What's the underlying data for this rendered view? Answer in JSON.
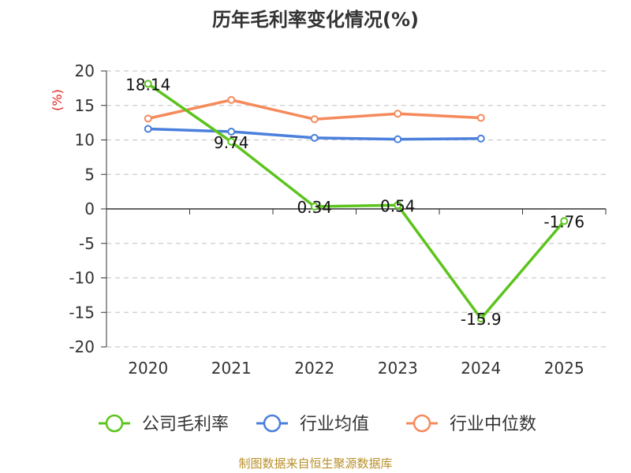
{
  "chart_data": {
    "type": "line",
    "title": "历年毛利率变化情况(%)",
    "ylabel": "(%)",
    "categories": [
      "2020",
      "2021",
      "2022",
      "2023",
      "2024",
      "2025"
    ],
    "ylim": [
      -20,
      20
    ],
    "yticks": [
      20,
      15,
      10,
      5,
      0,
      -5,
      -10,
      -15,
      -20
    ],
    "ytick_labels": [
      "20",
      "15",
      "10",
      "5",
      "0",
      "-5",
      "-10",
      "-15",
      "-20"
    ],
    "grid": true,
    "legend_position": "bottom",
    "series": [
      {
        "name": "公司毛利率",
        "color": "#5cc41d",
        "values": [
          18.14,
          9.74,
          0.34,
          0.54,
          -15.9,
          -1.76
        ],
        "labels": [
          "18.14",
          "9.74",
          "0.34",
          "0.54",
          "-15.9",
          "-1.76"
        ]
      },
      {
        "name": "行业均值",
        "color": "#4a7fdc",
        "values": [
          11.6,
          11.2,
          10.3,
          10.1,
          10.2,
          null
        ]
      },
      {
        "name": "行业中位数",
        "color": "#f58a5c",
        "values": [
          13.1,
          15.8,
          13.0,
          13.8,
          13.2,
          null
        ]
      }
    ]
  },
  "source_note": "制图数据来自恒生聚源数据库"
}
